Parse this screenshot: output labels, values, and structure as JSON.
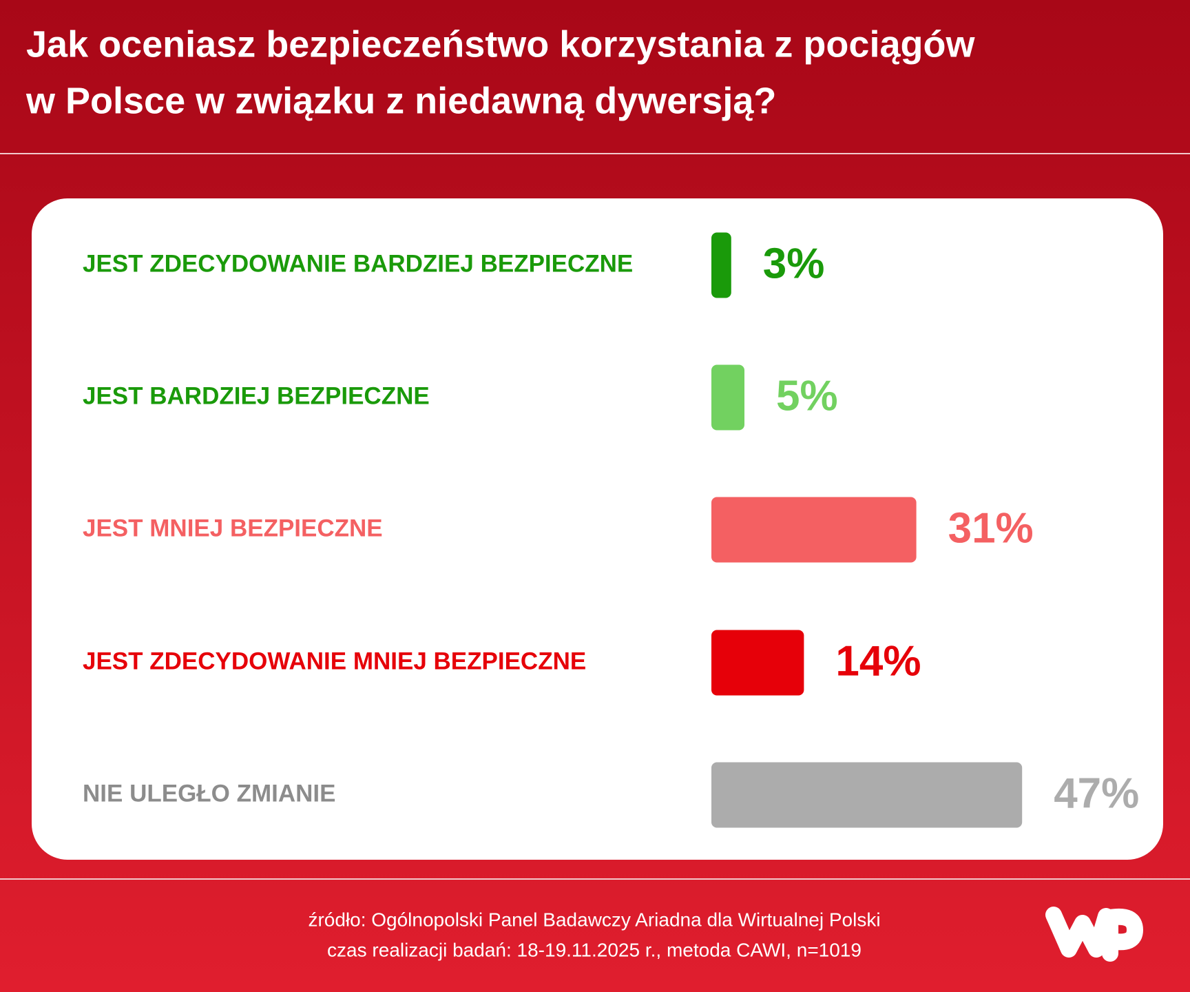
{
  "chart_data": {
    "type": "hbar",
    "title": [
      "Jak oceniasz bezpieczeństwo korzystania z pociągów",
      "w Polsce w związku z niedawną dywersją?"
    ],
    "categories": [
      "JEST ZDECYDOWANIE BARDZIEJ BEZPIECZNE",
      "JEST BARDZIEJ BEZPIECZNE",
      "JEST MNIEJ BEZPIECZNE",
      "JEST ZDECYDOWANIE MNIEJ BEZPIECZNE",
      "NIE ULEGŁO ZMIANIE"
    ],
    "values": [
      3,
      5,
      31,
      14,
      47
    ],
    "value_labels": [
      "3%",
      "5%",
      "31%",
      "14%",
      "47%"
    ],
    "colors": [
      "#1a9a0a",
      "#72d160",
      "#f46062",
      "#e60009",
      "#acacac"
    ],
    "label_colors": [
      "#1a9a0a",
      "#1a9a0a",
      "#f46062",
      "#e60009",
      "#8c8c8c"
    ],
    "source": [
      "źródło: Ogólnopolski Panel Badawczy Ariadna dla Wirtualnej Polski",
      "czas realizacji badań: 18-19.11.2025 r., metoda CAWI, n=1019"
    ]
  }
}
